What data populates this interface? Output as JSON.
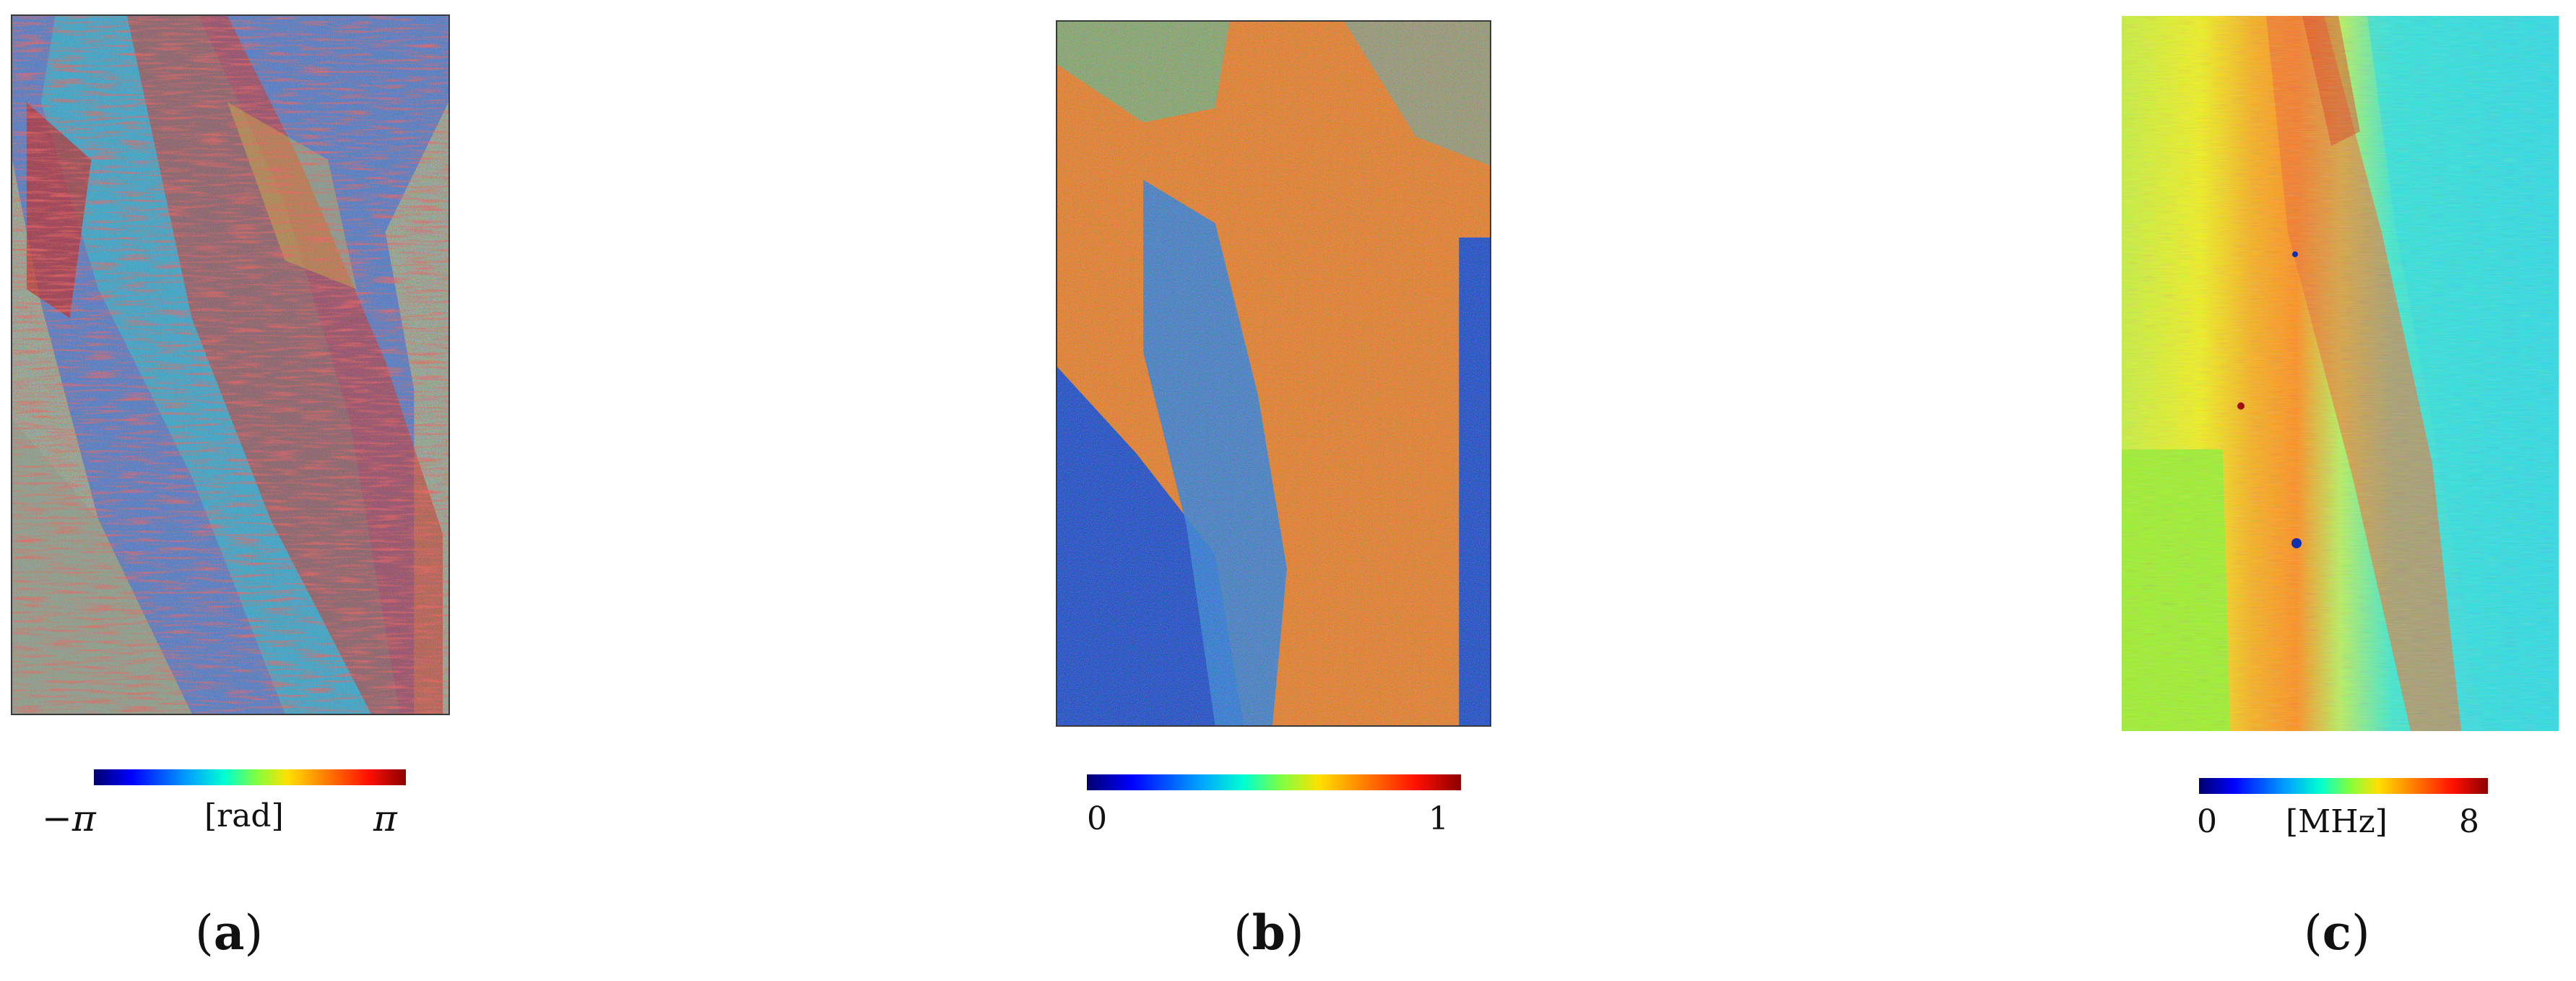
{
  "panels": [
    {
      "id": "a",
      "caption_letter": "a",
      "colorbar": {
        "min_label": "−π",
        "unit_label": "[rad]",
        "max_label": "π"
      }
    },
    {
      "id": "b",
      "caption_letter": "b",
      "colorbar": {
        "min_label": "0",
        "max_label": "1"
      }
    },
    {
      "id": "c",
      "caption_letter": "c",
      "colorbar": {
        "min_label": "0",
        "unit_label": "[MHz]",
        "max_label": "8"
      }
    }
  ],
  "colormap": "jet",
  "colors": {
    "deep_blue": "#0010c0",
    "cyan": "#20d8e0",
    "green_yellow": "#a8f020",
    "yellow": "#f0f020",
    "orange": "#ff9020",
    "red": "#e02010",
    "gray_noise": "#8a9888"
  }
}
